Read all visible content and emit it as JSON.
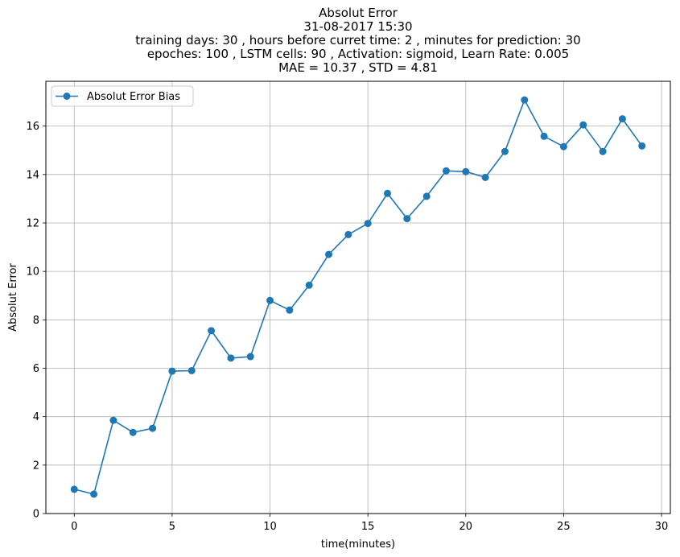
{
  "chart_data": {
    "type": "line",
    "title_lines": [
      "Absolut Error",
      "31-08-2017 15:30",
      "training days: 30 , hours before curret time: 2 , minutes for prediction: 30",
      "epoches: 100 , LSTM cells: 90 , Activation: sigmoid, Learn Rate: 0.005",
      "MAE = 10.37 , STD = 4.81"
    ],
    "xlabel": "time(minutes)",
    "ylabel": "Absolut Error",
    "xlim": [
      -1.45,
      30.45
    ],
    "ylim": [
      0,
      17.85
    ],
    "xticks": [
      0,
      5,
      10,
      15,
      20,
      25,
      30
    ],
    "yticks": [
      0,
      2,
      4,
      6,
      8,
      10,
      12,
      14,
      16
    ],
    "grid": true,
    "legend_position": "upper-left",
    "series": [
      {
        "name": "Absolut Error Bias",
        "color": "#1f77b4",
        "marker": "circle",
        "x": [
          0,
          1,
          2,
          3,
          4,
          5,
          6,
          7,
          8,
          9,
          10,
          11,
          12,
          13,
          14,
          15,
          16,
          17,
          18,
          19,
          20,
          21,
          22,
          23,
          24,
          25,
          26,
          27,
          28,
          29
        ],
        "y": [
          1.0,
          0.8,
          3.85,
          3.35,
          3.52,
          5.88,
          5.9,
          7.55,
          6.42,
          6.48,
          8.8,
          8.4,
          9.43,
          10.7,
          11.52,
          11.98,
          13.22,
          12.18,
          13.1,
          14.15,
          14.12,
          13.88,
          14.95,
          17.08,
          15.58,
          15.15,
          16.05,
          14.95,
          16.3,
          15.18
        ]
      }
    ]
  }
}
